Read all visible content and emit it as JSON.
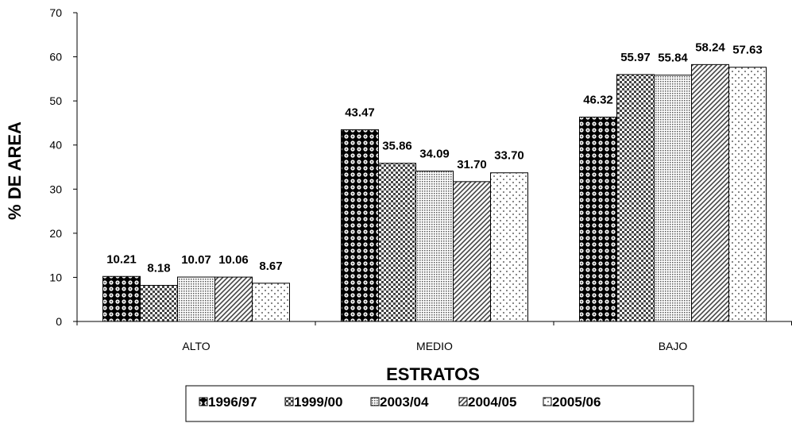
{
  "chart_data": {
    "type": "bar",
    "categories": [
      "ALTO",
      "MEDIO",
      "BAJO"
    ],
    "series": [
      {
        "name": "1996/97",
        "values": [
          10.21,
          43.47,
          46.32
        ],
        "pattern": "dark-circles"
      },
      {
        "name": "1999/00",
        "values": [
          8.18,
          35.86,
          55.97
        ],
        "pattern": "checker"
      },
      {
        "name": "2003/04",
        "values": [
          10.07,
          34.09,
          55.84
        ],
        "pattern": "fine-dots"
      },
      {
        "name": "2004/05",
        "values": [
          10.06,
          31.7,
          58.24
        ],
        "pattern": "diagonal-stripes"
      },
      {
        "name": "2005/06",
        "values": [
          8.67,
          33.7,
          57.63
        ],
        "pattern": "sparse-dots"
      }
    ],
    "data_labels": [
      [
        "10.21",
        "8.18",
        "10.07",
        "10.06",
        "8.67"
      ],
      [
        "43.47",
        "35.86",
        "34.09",
        "31.70",
        "33.70"
      ],
      [
        "46.32",
        "55.97",
        "55.84",
        "58.24",
        "57.63"
      ]
    ],
    "xlabel": "ESTRATOS",
    "ylabel": "% DE AREA",
    "ylim": [
      0,
      70
    ],
    "yticks": [
      "0",
      "10",
      "20",
      "30",
      "40",
      "50",
      "60",
      "70"
    ],
    "grid": false,
    "legend_position": "bottom"
  }
}
